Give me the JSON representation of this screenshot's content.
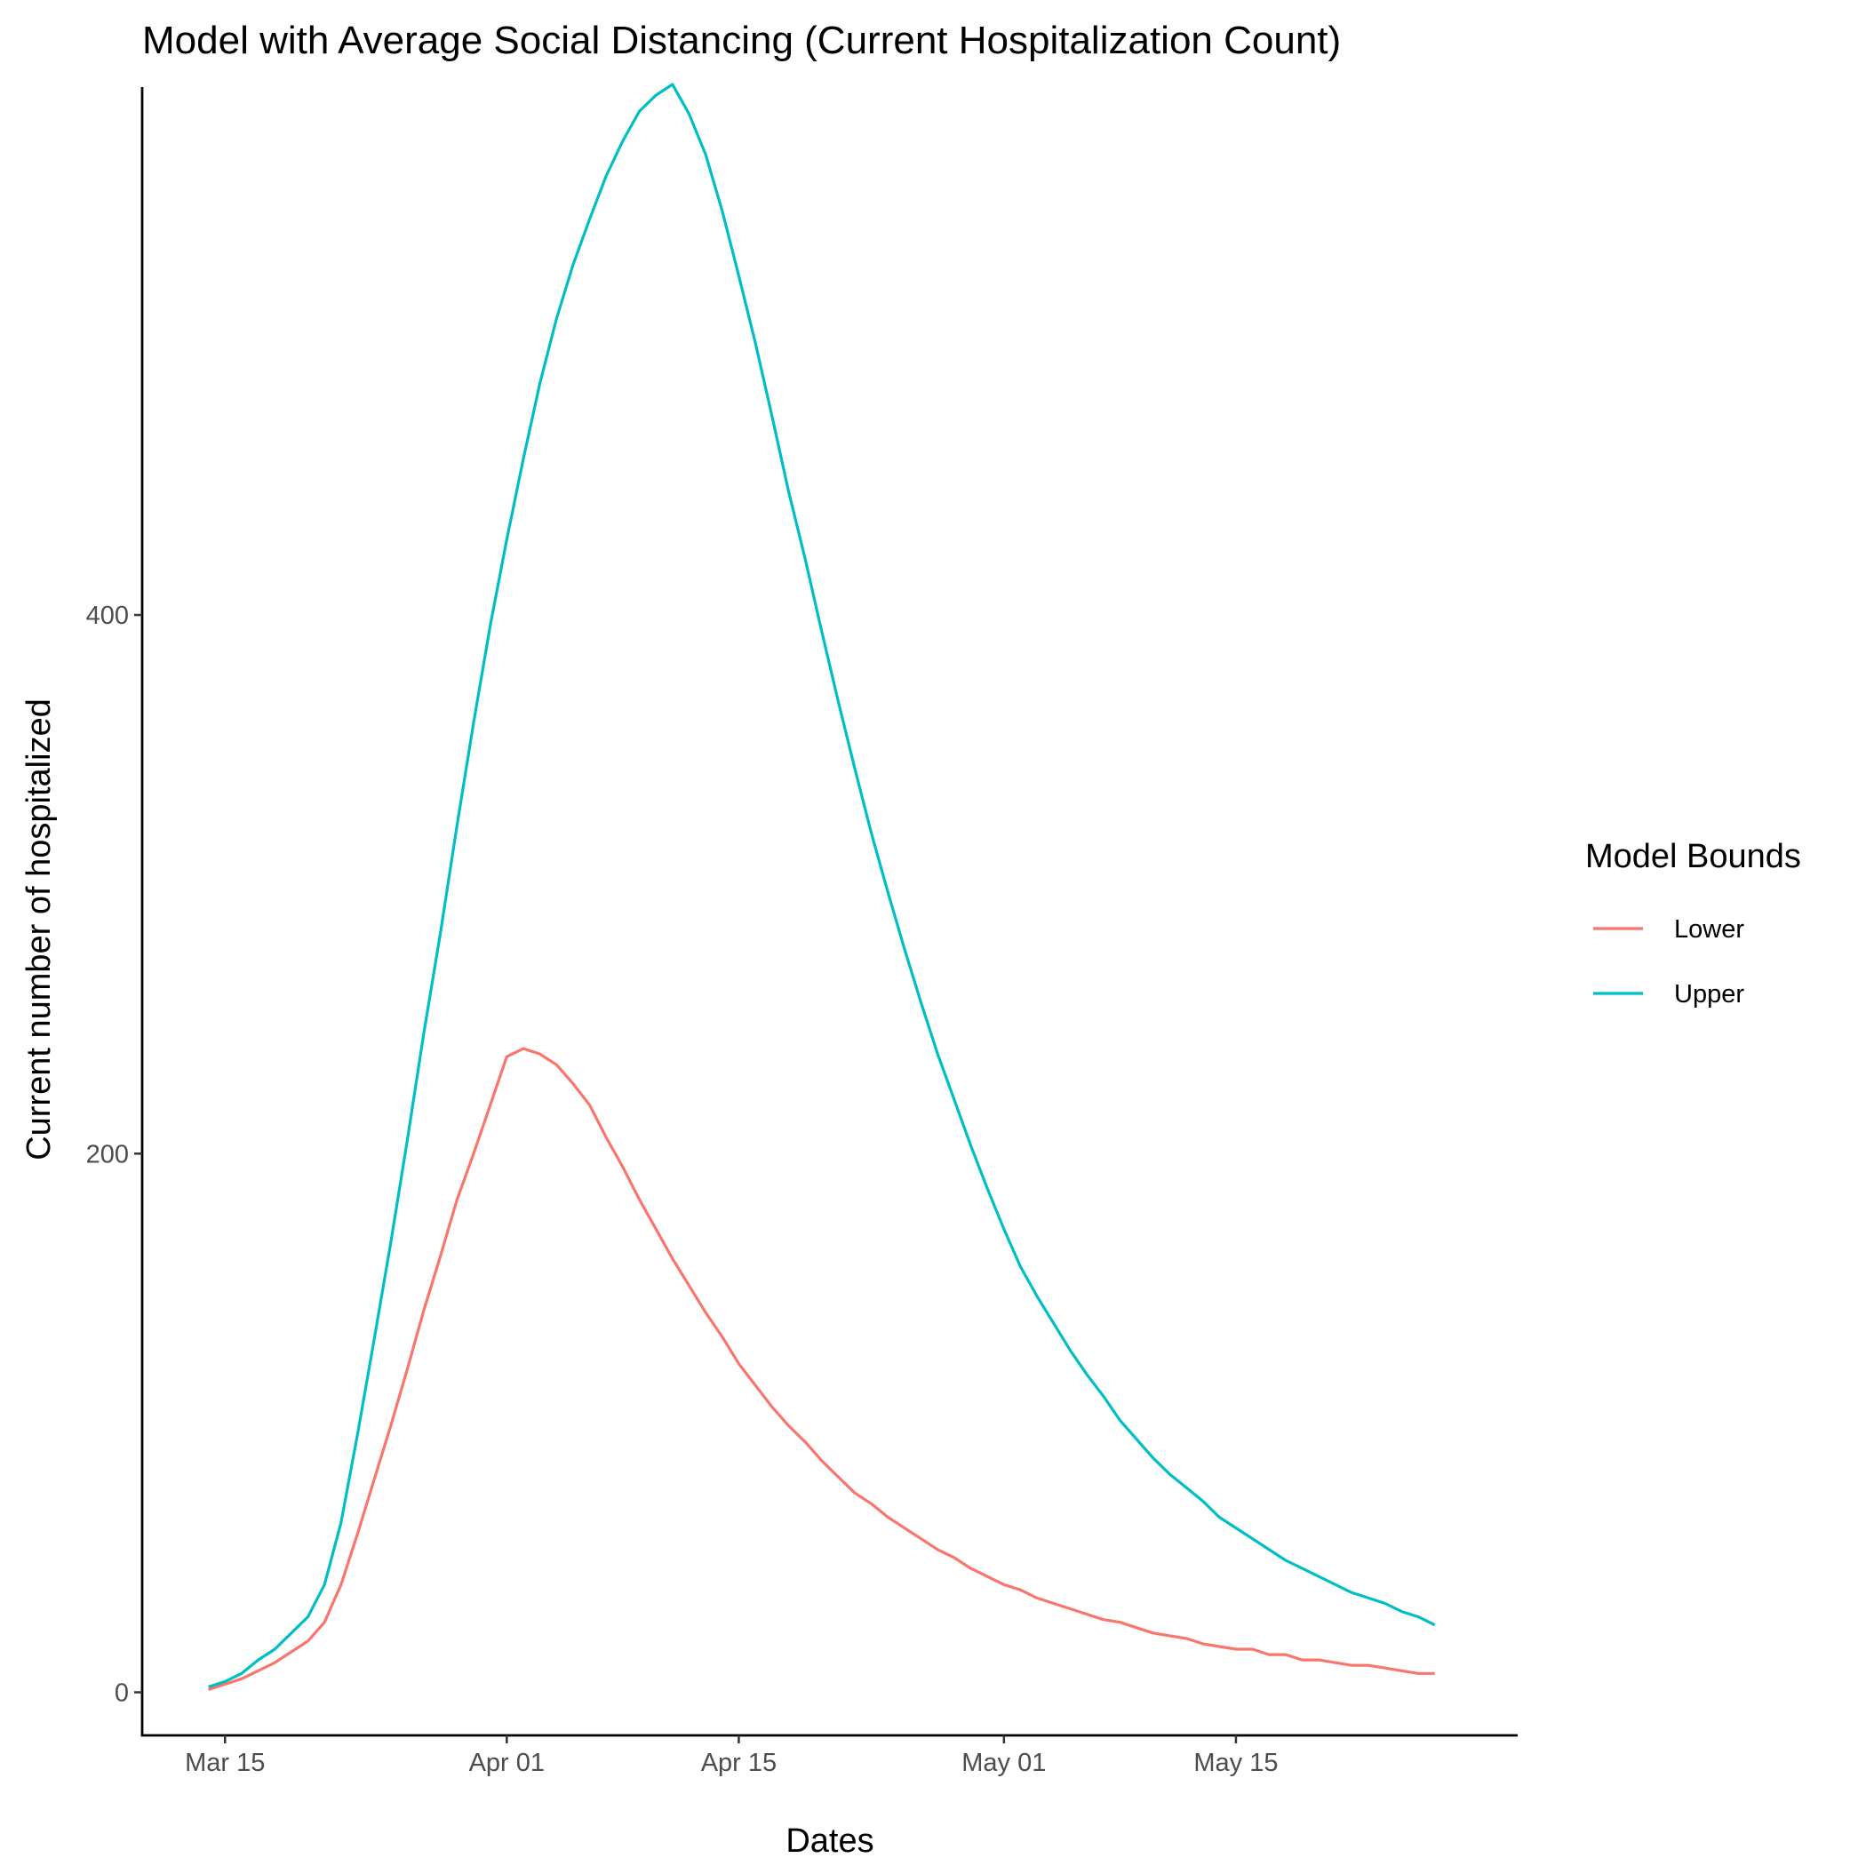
{
  "chart_data": {
    "type": "line",
    "title": "Model with Average Social Distancing (Current Hospitalization Count)",
    "xlabel": "Dates",
    "ylabel": "Current number of hospitalized",
    "x_start": "2020-03-14",
    "x_tick_labels": [
      "Mar 15",
      "Apr 01",
      "Apr 15",
      "May 01",
      "May 15"
    ],
    "x_tick_dates": [
      "2020-03-15",
      "2020-04-01",
      "2020-04-15",
      "2020-05-01",
      "2020-05-15"
    ],
    "xlim": [
      "2020-03-10",
      "2020-06-01"
    ],
    "y_ticks": [
      0,
      200,
      400
    ],
    "y_tick_labels": [
      "0",
      "200",
      "400"
    ],
    "ylim": [
      -16,
      596
    ],
    "grid": false,
    "legend": {
      "title": "Model Bounds",
      "placement": "right"
    },
    "series": [
      {
        "name": "Lower",
        "color": "#F8766D",
        "values": [
          1,
          3,
          5,
          8,
          11,
          15,
          19,
          26,
          40,
          59,
          79,
          99,
          120,
          142,
          162,
          183,
          200,
          218,
          236,
          239,
          237,
          233,
          226,
          218,
          206,
          195,
          183,
          172,
          161,
          151,
          141,
          132,
          122,
          114,
          106,
          99,
          93,
          86,
          80,
          74,
          70,
          65,
          61,
          57,
          53,
          50,
          46,
          43,
          40,
          38,
          35,
          33,
          31,
          29,
          27,
          26,
          24,
          22,
          21,
          20,
          18,
          17,
          16,
          16,
          14,
          14,
          12,
          12,
          11,
          10,
          10,
          9,
          8,
          7,
          7
        ]
      },
      {
        "name": "Upper",
        "color": "#00BFC4",
        "values": [
          2,
          4,
          7,
          12,
          16,
          22,
          28,
          40,
          63,
          96,
          131,
          167,
          205,
          245,
          282,
          322,
          360,
          396,
          428,
          458,
          486,
          510,
          530,
          547,
          563,
          576,
          587,
          593,
          597,
          586,
          571,
          550,
          526,
          501,
          474,
          446,
          421,
          394,
          368,
          343,
          319,
          297,
          276,
          256,
          237,
          220,
          203,
          187,
          172,
          158,
          147,
          137,
          127,
          118,
          110,
          101,
          94,
          87,
          81,
          76,
          71,
          65,
          61,
          57,
          53,
          49,
          46,
          43,
          40,
          37,
          35,
          33,
          30,
          28,
          25
        ]
      }
    ]
  }
}
